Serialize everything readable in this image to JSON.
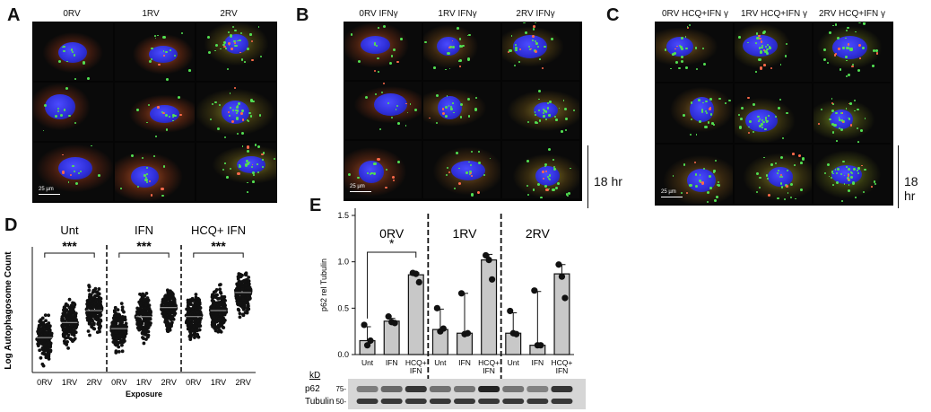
{
  "panels": {
    "A": {
      "label": "A",
      "columns": [
        "0RV",
        "1RV",
        "2RV"
      ],
      "scale_label": "25 µm"
    },
    "B": {
      "label": "B",
      "columns": [
        "0RV IFNγ",
        "1RV IFNγ",
        "2RV IFNγ"
      ],
      "scale_label": "25 µm",
      "time_label": "18 hr"
    },
    "C": {
      "label": "C",
      "columns": [
        "0RV HCQ+IFN γ",
        "1RV HCQ+IFN γ",
        "2RV HCQ+IFN γ"
      ],
      "scale_label": "25 µm",
      "time_label": "18 hr"
    }
  },
  "colors": {
    "nucleus": "#2f2fd8",
    "cytoplasm": "#b0402a",
    "puncta": "#52e052",
    "bar_fill": "#c8c8c8"
  },
  "chart_data": [
    {
      "id": "D",
      "panel_label": "D",
      "type": "scatter",
      "ylabel": "Log Autophagosome Count",
      "xlabel": "Exposure",
      "categories": [
        "0RV",
        "1RV",
        "2RV",
        "0RV",
        "1RV",
        "2RV",
        "0RV",
        "1RV",
        "2RV"
      ],
      "groups": [
        {
          "name": "Unt",
          "significance": "***",
          "categories": [
            "0RV",
            "1RV",
            "2RV"
          ]
        },
        {
          "name": "IFN",
          "significance": "***",
          "categories": [
            "0RV",
            "1RV",
            "2RV"
          ]
        },
        {
          "name": "HCQ+ IFN",
          "significance": "***",
          "categories": [
            "0RV",
            "1RV",
            "2RV"
          ]
        }
      ],
      "medians": [
        1.1,
        1.6,
        2.0,
        1.4,
        1.8,
        2.1,
        1.8,
        2.0,
        2.6
      ],
      "ranges": [
        [
          0.0,
          2.3
        ],
        [
          0.3,
          2.9
        ],
        [
          0.0,
          3.9
        ],
        [
          0.0,
          2.4
        ],
        [
          0.5,
          2.6
        ],
        [
          1.3,
          2.7
        ],
        [
          0.1,
          2.8
        ],
        [
          0.1,
          3.0
        ],
        [
          1.4,
          3.8
        ]
      ],
      "ylim": [
        0,
        4
      ],
      "grid": false
    },
    {
      "id": "E",
      "panel_label": "E",
      "type": "bar",
      "ylabel": "p62 rel Tubulin",
      "categories": [
        "Unt",
        "IFN",
        "HCQ+\nIFN",
        "Unt",
        "IFN",
        "HCQ+\nIFN",
        "Unt",
        "IFN",
        "HCQ+\nIFN"
      ],
      "groups": [
        {
          "name": "0RV",
          "significance": "*"
        },
        {
          "name": "1RV"
        },
        {
          "name": "2RV"
        }
      ],
      "values": [
        0.15,
        0.36,
        0.86,
        0.27,
        0.23,
        1.02,
        0.23,
        0.1,
        0.87
      ],
      "errors": [
        0.15,
        0.03,
        0.02,
        0.22,
        0.43,
        0.06,
        0.22,
        0.58,
        0.1
      ],
      "points": [
        [
          0.32,
          0.1,
          0.15
        ],
        [
          0.41,
          0.35,
          0.34
        ],
        [
          0.88,
          0.87,
          0.78
        ],
        [
          0.5,
          0.25,
          0.28
        ],
        [
          0.66,
          0.22,
          0.23
        ],
        [
          1.07,
          1.02,
          0.81
        ],
        [
          0.47,
          0.23,
          0.22
        ],
        [
          0.69,
          0.1,
          0.1
        ],
        [
          0.97,
          0.84,
          0.61
        ]
      ],
      "yticks": [
        "0.0",
        "0.5",
        "1.0",
        "1.5"
      ],
      "ylim": [
        0,
        1.5
      ],
      "grid": false
    }
  ],
  "blot": {
    "unit_label": "kD",
    "rows": [
      {
        "name": "p62",
        "marker": "75-"
      },
      {
        "name": "Tubulin",
        "marker": "50-"
      }
    ]
  }
}
